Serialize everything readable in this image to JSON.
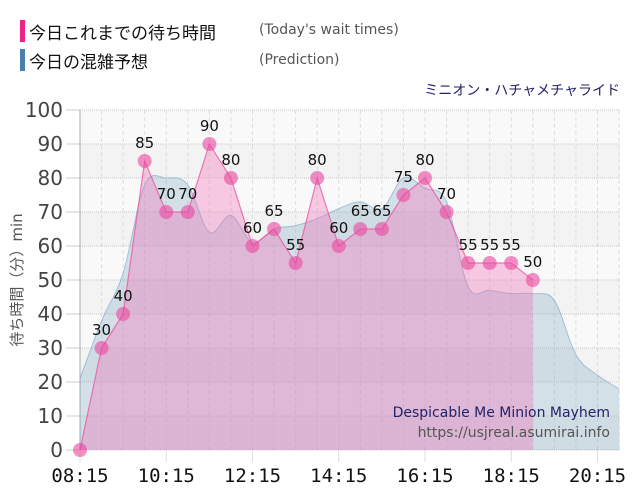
{
  "legend": {
    "today": {
      "label_jp": "今日これまでの待ち時間",
      "label_en": "(Today's wait times)",
      "color": "#ee2288"
    },
    "prediction": {
      "label_jp": "今日の混雑予想",
      "label_en": "(Prediction)",
      "color": "#4a7fb0"
    }
  },
  "ride_name_jp": "ミニオン・ハチャメチャライド",
  "watermark": {
    "title": "Despicable Me Minion Mayhem",
    "url": "https://usjreal.asumirai.info"
  },
  "chart_data": {
    "type": "area",
    "title": "ミニオン・ハチャメチャライド",
    "xlabel": "",
    "ylabel": "待ち時間（分）min",
    "ylim": [
      0,
      100
    ],
    "yticks": [
      0,
      10,
      20,
      30,
      40,
      50,
      60,
      70,
      80,
      90,
      100
    ],
    "xticks": [
      "08:15",
      "10:15",
      "12:15",
      "14:15",
      "16:15",
      "18:15",
      "20:15"
    ],
    "grid": true,
    "legend_position": "top-left",
    "series": [
      {
        "name": "今日これまでの待ち時間 (Today's wait times)",
        "x": [
          "08:15",
          "08:45",
          "09:15",
          "09:45",
          "10:15",
          "10:45",
          "11:15",
          "11:45",
          "12:15",
          "12:45",
          "13:15",
          "13:45",
          "14:15",
          "14:45",
          "15:15",
          "15:45",
          "16:15",
          "16:45",
          "17:15",
          "17:45",
          "18:15",
          "18:45"
        ],
        "values": [
          0,
          30,
          40,
          85,
          70,
          70,
          90,
          80,
          60,
          65,
          55,
          80,
          60,
          65,
          65,
          75,
          80,
          70,
          55,
          55,
          55,
          50
        ],
        "labels": true
      },
      {
        "name": "今日の混雑予想 (Prediction)",
        "x": [
          "08:15",
          "08:45",
          "09:15",
          "09:45",
          "10:15",
          "10:45",
          "11:15",
          "11:45",
          "12:15",
          "12:45",
          "13:15",
          "13:45",
          "14:15",
          "14:45",
          "15:15",
          "15:45",
          "16:15",
          "16:45",
          "17:15",
          "17:45",
          "18:15",
          "18:45",
          "19:15",
          "19:45",
          "20:15",
          "20:45"
        ],
        "values": [
          21,
          38,
          52,
          78,
          80,
          78,
          64,
          69,
          61,
          65,
          66,
          68,
          71,
          73,
          71,
          80,
          77,
          73,
          48,
          47,
          46,
          46,
          44,
          28,
          22,
          18
        ]
      }
    ]
  }
}
